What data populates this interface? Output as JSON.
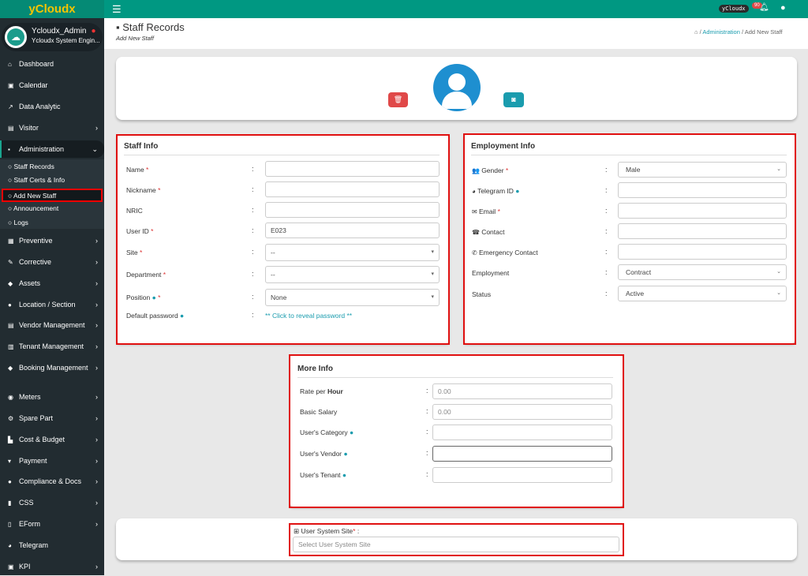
{
  "header": {
    "logo": "yCloudx",
    "brand_pill": "yCloudx",
    "notif_count": "90"
  },
  "user": {
    "name": "Ycloudx_Admin",
    "role": "Ycloudx System Engin..."
  },
  "sidebar": {
    "items": [
      {
        "label": "Dashboard",
        "icon": "home-icon",
        "ic": "⌂",
        "chev": false
      },
      {
        "label": "Calendar",
        "icon": "calendar-icon",
        "ic": "▣",
        "chev": false
      },
      {
        "label": "Data Analytic",
        "icon": "chart-line-icon",
        "ic": "↗",
        "chev": false
      },
      {
        "label": "Visitor",
        "icon": "id-card-icon",
        "ic": "▤",
        "chev": true
      },
      {
        "label": "Administration",
        "icon": "user-badge-icon",
        "ic": "▪",
        "chev": true,
        "active": true
      },
      {
        "label": "Preventive",
        "icon": "calendar-icon",
        "ic": "▦",
        "chev": true
      },
      {
        "label": "Corrective",
        "icon": "wrench-icon",
        "ic": "✎",
        "chev": true
      },
      {
        "label": "Assets",
        "icon": "tag-icon",
        "ic": "◆",
        "chev": true
      },
      {
        "label": "Location / Section",
        "icon": "globe-icon",
        "ic": "●",
        "chev": true
      },
      {
        "label": "Vendor Management",
        "icon": "vcard-icon",
        "ic": "▤",
        "chev": true
      },
      {
        "label": "Tenant Management",
        "icon": "building-icon",
        "ic": "▥",
        "chev": true
      },
      {
        "label": "Booking Management",
        "icon": "tags-icon",
        "ic": "◆",
        "chev": true
      },
      {
        "label": "Meters",
        "icon": "tachometer-icon",
        "ic": "◉",
        "chev": true
      },
      {
        "label": "Spare Part",
        "icon": "spare-part-icon",
        "ic": "⚙",
        "chev": true
      },
      {
        "label": "Cost & Budget",
        "icon": "bar-chart-icon",
        "ic": "▙",
        "chev": true
      },
      {
        "label": "Payment",
        "icon": "cart-icon",
        "ic": "▾",
        "chev": true
      },
      {
        "label": "Compliance & Docs",
        "icon": "circle-icon",
        "ic": "●",
        "chev": true
      },
      {
        "label": "CSS",
        "icon": "file-icon",
        "ic": "▮",
        "chev": true
      },
      {
        "label": "EForm",
        "icon": "form-icon",
        "ic": "▯",
        "chev": true
      },
      {
        "label": "Telegram",
        "icon": "telegram-icon",
        "ic": "◕",
        "chev": false
      },
      {
        "label": "KPI",
        "icon": "portrait-icon",
        "ic": "▣",
        "chev": true
      }
    ],
    "subitems": [
      "Staff Records",
      "Staff Certs & Info",
      "Add New Staff",
      "Announcement",
      "Logs"
    ]
  },
  "page": {
    "title": "Staff Records",
    "subtitle": "Add New Staff",
    "breadcrumb": [
      "Administration",
      "Add New Staff"
    ]
  },
  "staff_info": {
    "title": "Staff Info",
    "rows": [
      {
        "label": "Name",
        "req": true,
        "value": "",
        "type": "text"
      },
      {
        "label": "Nickname",
        "req": true,
        "value": "",
        "type": "text"
      },
      {
        "label": "NRIC",
        "value": "",
        "type": "text"
      },
      {
        "label": "User ID",
        "req": true,
        "value": "E023",
        "type": "text"
      },
      {
        "label": "Site",
        "req": true,
        "value": "--",
        "type": "select"
      },
      {
        "label": "Department",
        "req": true,
        "value": "--",
        "type": "select"
      },
      {
        "label": "Position",
        "info": true,
        "req": true,
        "value": "None",
        "type": "select"
      },
      {
        "label": "Default password",
        "info": true,
        "value": "** Click to reveal password **",
        "type": "link"
      }
    ]
  },
  "employment_info": {
    "title": "Employment Info",
    "rows": [
      {
        "label": "Gender",
        "icon": "users-icon",
        "ic": "👥",
        "req": true,
        "value": "Male",
        "type": "dropdown"
      },
      {
        "label": "Telegram ID",
        "icon": "telegram-icon",
        "ic": "◕",
        "info": true,
        "value": "",
        "type": "text"
      },
      {
        "label": "Email",
        "icon": "envelope-icon",
        "ic": "✉",
        "req": true,
        "value": "",
        "type": "text"
      },
      {
        "label": "Contact",
        "icon": "phone-square-icon",
        "ic": "☎",
        "value": "",
        "type": "text"
      },
      {
        "label": "Emergency Contact",
        "icon": "phone-icon",
        "ic": "✆",
        "value": "",
        "type": "text"
      },
      {
        "label": "Employment",
        "value": "Contract",
        "type": "dropdown"
      },
      {
        "label": "Status",
        "value": "Active",
        "type": "dropdown"
      }
    ]
  },
  "more_info": {
    "title": "More Info",
    "rows": [
      {
        "label": "Rate per ",
        "bold": "Hour",
        "placeholder": "0.00"
      },
      {
        "label": "Basic Salary",
        "placeholder": "0.00"
      },
      {
        "label": "User's Category",
        "info": true,
        "placeholder": ""
      },
      {
        "label": "User's Vendor",
        "info": true,
        "placeholder": ""
      },
      {
        "label": "User's Tenant",
        "info": true,
        "placeholder": ""
      }
    ]
  },
  "system_site": {
    "label": "User System Site",
    "suffix": " :",
    "placeholder": "Select User System Site"
  },
  "colors": {
    "header": "#009882",
    "sidebar": "#222c31",
    "accent": "#1a9cae",
    "danger": "#e04848",
    "highlight": "#e01010"
  }
}
